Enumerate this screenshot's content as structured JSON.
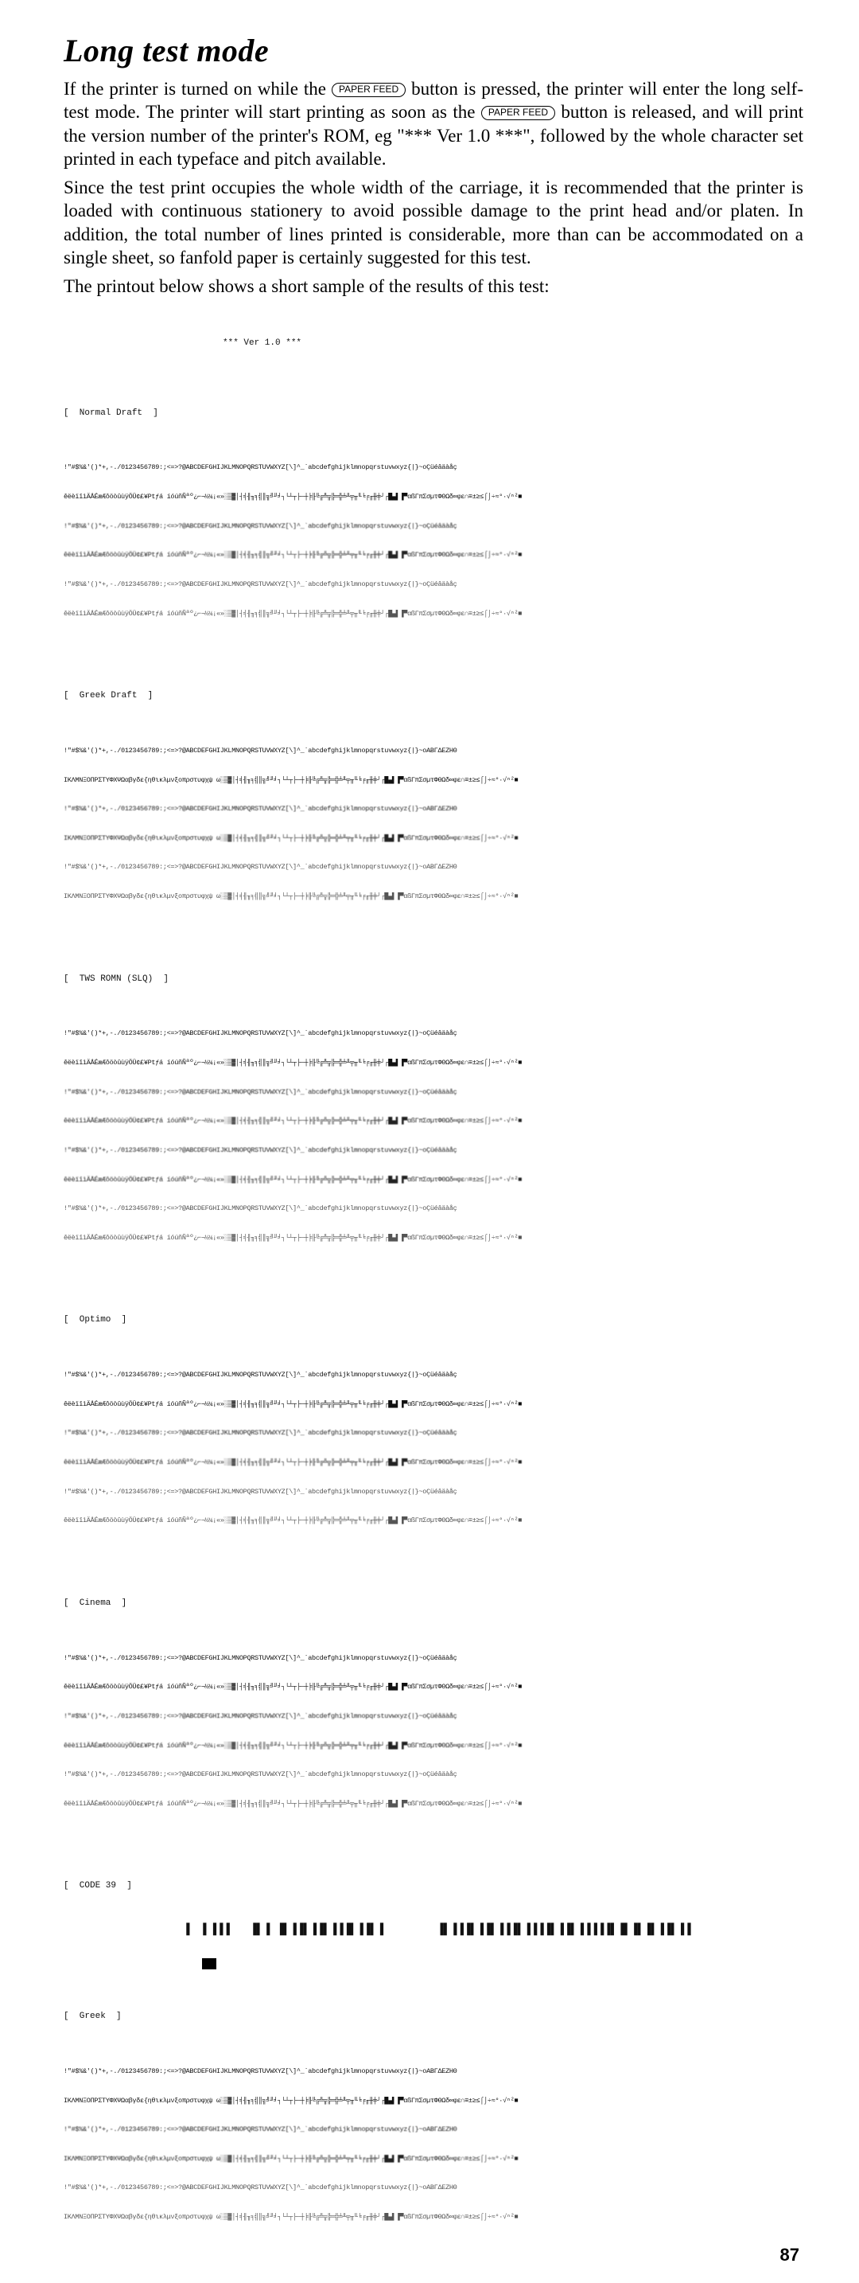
{
  "title": "Long test mode",
  "para1a": "If the printer is turned on while the ",
  "btn_paper_feed": "PAPER FEED",
  "para1b": " button is pressed, the printer will enter the long self-test mode. The printer will start printing as soon as the ",
  "para1c": " button is released, and will print the version number of the printer's ROM, eg \"*** Ver 1.0 ***\", followed by the whole character set printed in each typeface and pitch available.",
  "para2": "Since the test print occupies the whole width of the carriage, it is recommended that the printer is loaded with continuous stationery to avoid possible damage to the print head and/or platen. In addition, the total number of lines printed is considerable, more than can be accommodated on a single sheet, so fanfold paper is certainly suggested for this test.",
  "para3": "The printout below shows a short sample of the results of this test:",
  "ver": "*** Ver 1.0 ***",
  "labels": {
    "normal": "[  Normal Draft  ]",
    "greekd": "[  Greek Draft  ]",
    "tws": "[  TWS ROMN (SLQ)  ]",
    "optimo": "[  Optimo  ]",
    "cinema": "[  Cinema  ]",
    "code39": "[  CODE 39  ]",
    "greek": "[  Greek  ]"
  },
  "cs1": "!\"#$%&'()*+,-./0123456789:;<=>?@ABCDEFGHIJKLMNOPQRSTUVWXYZ[\\]^_`abcdefghijklmnopqrstuvwxyz{|}~oÇüéâäàåç",
  "cs2": "êëèïîìÄÅÉæÆôöòûùÿÖÜ¢£¥Ptƒá íóúñÑªº¿⌐¬½¼¡«»░▒▓│┤╡╢╖╕╣║╗╝╜╛┐└┴┬├─┼╞╟╚╔╩╦╠═╬╧╨╤╥╙╘╒╓╫╪┘┌█▄▌▐▀αßΓπΣσµτΦΘΩδ∞φε∩≡±≥≤⌠⌡÷≈°·√ⁿ²■",
  "cs3": "!\"#$%&'()*+,-./0123456789:;<=>?@ABCDEFGHIJKLMNOPQRSTUVWXYZ[\\]^_`abcdefghijklmnopqrstuvwxyz{|}~oABΓΔEZHΘ",
  "cs4": "IKΛMNΞOΠPΣTYΦXΨΩαβγδε{ηθικλμνξoπρστυφχψ ω░▒▓│┤╡╢╖╕╣║╗╝╜╛┐└┴┬├─┼╞╟╚╔╩╦╠═╬╧╨╤╥╙╘╒╓╫╪┘┌█▄▌▐▀αßΓπΣσµτΦΘΩδ∞φε∩≡±≥≤⌠⌡÷≈°·√ⁿ²■",
  "barcode": "▐  ▌▐▐▐   ▐▌▐ ▐▌▐▐▌▐▐▌▐▐▐▌▐▐▌▐        ▐▌▐▐▐▌▐▐▌▐▐▐▌▐▐▐▐▌▐▐▌▐▐▐▐▐▌▐▌▐▌▐▌▐▐▌▐▐",
  "page_num": "87"
}
